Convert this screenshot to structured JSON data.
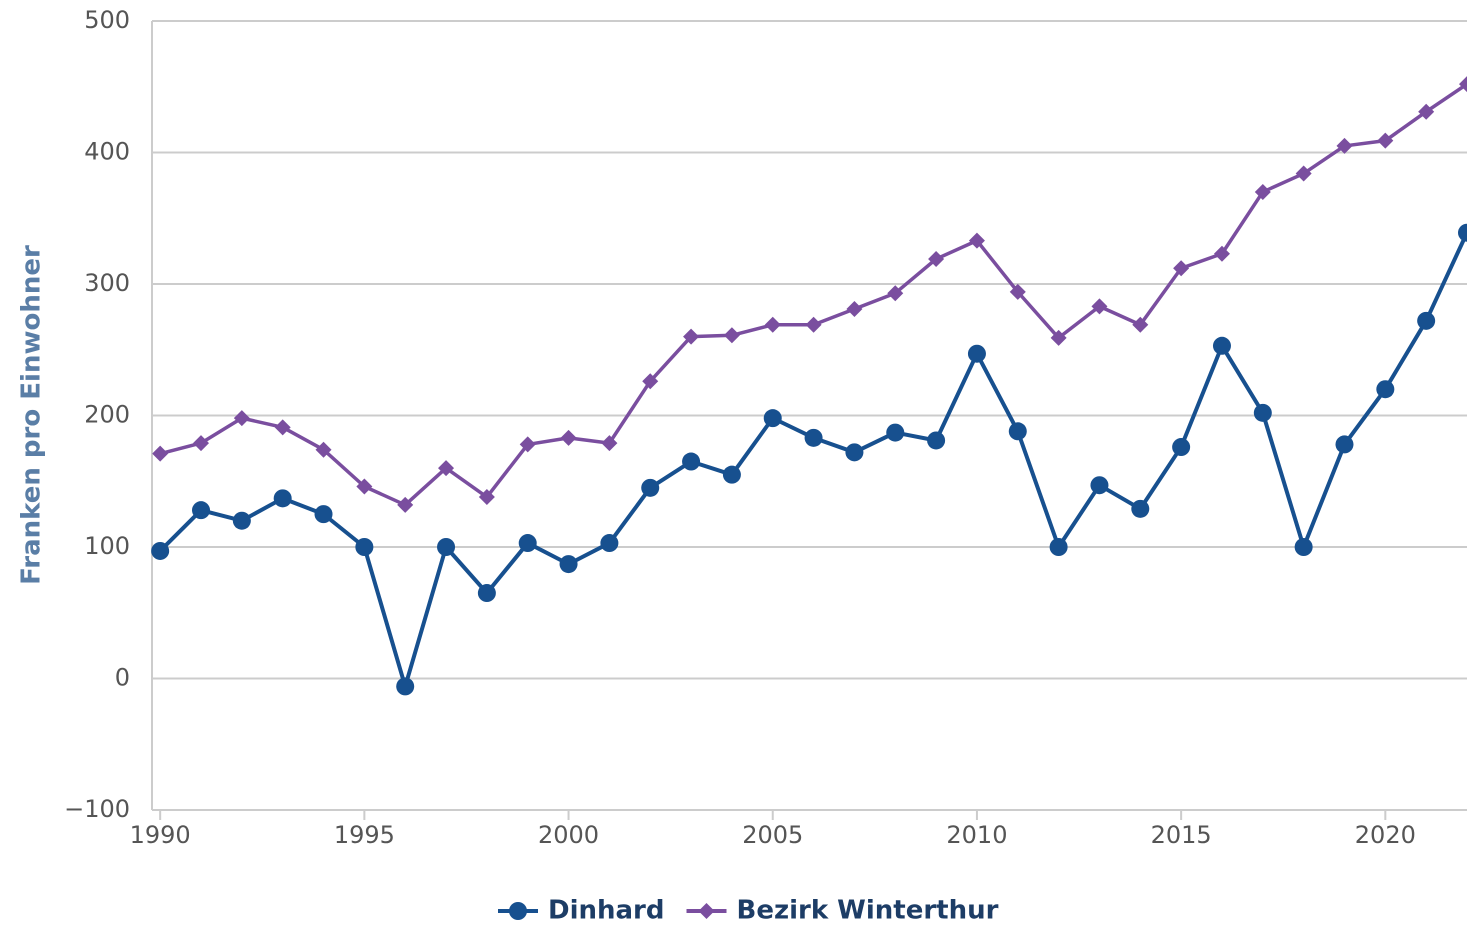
{
  "chart_data": {
    "type": "line",
    "y_label": "Franken pro Einwohner",
    "x": [
      1990,
      1991,
      1992,
      1993,
      1994,
      1995,
      1996,
      1997,
      1998,
      1999,
      2000,
      2001,
      2002,
      2003,
      2004,
      2005,
      2006,
      2007,
      2008,
      2009,
      2010,
      2011,
      2012,
      2013,
      2014,
      2015,
      2016,
      2017,
      2018,
      2019,
      2020,
      2021,
      2022
    ],
    "series": [
      {
        "name": "Dinhard",
        "color": "#17508f",
        "marker": "circle",
        "values": [
          97,
          128,
          120,
          137,
          125,
          100,
          -6,
          100,
          65,
          103,
          87,
          103,
          145,
          165,
          155,
          198,
          183,
          172,
          187,
          181,
          247,
          188,
          100,
          147,
          129,
          176,
          253,
          202,
          100,
          178,
          220,
          272,
          339
        ]
      },
      {
        "name": "Bezirk Winterthur",
        "color": "#7a4e9f",
        "marker": "diamond",
        "values": [
          171,
          179,
          198,
          191,
          174,
          146,
          132,
          160,
          138,
          178,
          183,
          179,
          226,
          260,
          261,
          269,
          269,
          281,
          293,
          319,
          333,
          294,
          259,
          283,
          269,
          312,
          323,
          370,
          384,
          405,
          409,
          431,
          452
        ]
      }
    ],
    "xlim": [
      1989.8,
      2022
    ],
    "xticks": [
      1990,
      1995,
      2000,
      2005,
      2010,
      2015,
      2020
    ],
    "ylim": [
      -100,
      500
    ],
    "yticks": [
      {
        "value": -100,
        "label": "−100"
      },
      0,
      100,
      200,
      300,
      400,
      500
    ],
    "grid": true,
    "legend": "bottom"
  }
}
